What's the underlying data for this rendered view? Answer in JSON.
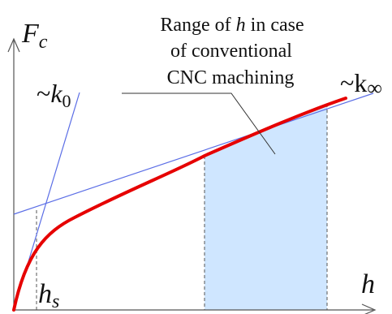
{
  "diagram": {
    "annotation": {
      "line1_pre": "Range of ",
      "line1_var": "h",
      "line1_post": " in case",
      "line2": "of conventional",
      "line3": "CNC machining"
    },
    "y_axis": {
      "label": "F",
      "subscript": "c"
    },
    "x_axis": {
      "label": "h"
    },
    "marker": {
      "label": "h",
      "subscript": "s"
    },
    "slopes": {
      "initial": {
        "prefix": "~",
        "symbol": "k",
        "subscript": "0"
      },
      "asymptotic": {
        "prefix": "~",
        "symbol": "k",
        "subscript": "∞"
      }
    },
    "colors": {
      "curve": "#e60000",
      "guide_lines": "#5b6ee6",
      "range_fill": "#cfe6ff",
      "axes": "#555555"
    }
  }
}
